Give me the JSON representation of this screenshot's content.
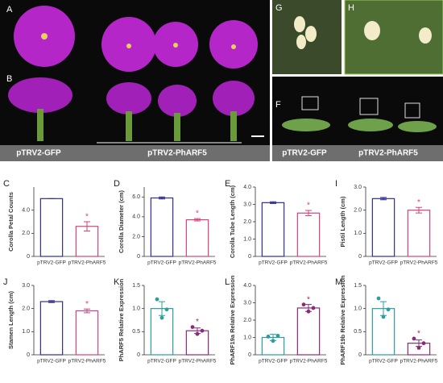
{
  "figure": {
    "photo_panels": {
      "A": "A",
      "B": "B",
      "G": "G",
      "H": "H",
      "F": "F"
    },
    "left_group_labels": [
      "pTRV2-GFP",
      "pTRV2-PhARF5"
    ],
    "right_group_labels": [
      "pTRV2-GFP",
      "pTRV2-PhARF5"
    ]
  },
  "chart_data": [
    {
      "type": "bar",
      "label": "C",
      "ylabel": "Corolla Petal Counts",
      "categories": [
        "pTRV2-GFP",
        "pTRV2-PhARF5"
      ],
      "values": [
        5,
        2.6
      ],
      "errors": [
        0,
        0.4
      ],
      "colors": [
        "#2e2e8f",
        "#d4427c"
      ],
      "ylim": [
        0,
        6
      ],
      "yticks": [
        0,
        {
          "value": 2,
          "label": "2.0"
        },
        {
          "value": 4,
          "label": "4.0"
        }
      ],
      "annotation": "*"
    },
    {
      "type": "bar",
      "label": "D",
      "ylabel": "Corolla Diameter (cm)",
      "categories": [
        "pTRV2-GFP",
        "pTRV2-PhARF5"
      ],
      "values": [
        5.9,
        3.7
      ],
      "errors": [
        0.1,
        0.12
      ],
      "colors": [
        "#2e2e8f",
        "#d4427c"
      ],
      "ylim": [
        0,
        7
      ],
      "yticks": [
        0,
        {
          "value": 2,
          "label": "2.0"
        },
        {
          "value": 4,
          "label": "4.0"
        },
        {
          "value": 6,
          "label": "6.0"
        }
      ],
      "annotation": "*"
    },
    {
      "type": "bar",
      "label": "E",
      "ylabel": "Corolla Tube Length (cm)",
      "categories": [
        "pTRV2-GFP",
        "pTRV2-PhARF5"
      ],
      "values": [
        3.1,
        2.5
      ],
      "errors": [
        0.05,
        0.15
      ],
      "colors": [
        "#2e2e8f",
        "#d4427c"
      ],
      "ylim": [
        0,
        4
      ],
      "yticks": [
        0,
        {
          "value": 1,
          "label": "1.0"
        },
        {
          "value": 2,
          "label": "2.0"
        },
        {
          "value": 3,
          "label": "3.0"
        },
        {
          "value": 4,
          "label": "4.0"
        }
      ],
      "annotation": "*"
    },
    {
      "type": "bar",
      "label": "I",
      "ylabel": "Pistil Length (cm)",
      "categories": [
        "pTRV2-GFP",
        "pTRV2-PhARF5"
      ],
      "values": [
        2.5,
        2.0
      ],
      "errors": [
        0.05,
        0.12
      ],
      "colors": [
        "#2e2e8f",
        "#d4427c"
      ],
      "ylim": [
        0,
        3
      ],
      "yticks": [
        0,
        {
          "value": 1,
          "label": "1.0"
        },
        {
          "value": 2,
          "label": "2.0"
        },
        {
          "value": 3,
          "label": "3.0"
        }
      ],
      "annotation": "*"
    },
    {
      "type": "bar",
      "label": "J",
      "ylabel": "Stamen Length (cm)",
      "categories": [
        "pTRV2-GFP",
        "pTRV2-PhARF5"
      ],
      "values": [
        2.3,
        1.9
      ],
      "errors": [
        0.04,
        0.08
      ],
      "colors": [
        "#2e2e8f",
        "#d4427c"
      ],
      "ylim": [
        0,
        3
      ],
      "yticks": [
        0,
        {
          "value": 1,
          "label": "1.0"
        },
        {
          "value": 2,
          "label": "2.0"
        },
        {
          "value": 3,
          "label": "3.0"
        }
      ],
      "annotation": "*"
    },
    {
      "type": "bar",
      "label": "K",
      "ylabel": "PhARF5 Relative Expression",
      "categories": [
        "pTRV2-GFP",
        "pTRV2-PhARF5"
      ],
      "values": [
        1.0,
        0.52
      ],
      "errors": [
        0.15,
        0.06
      ],
      "colors": [
        "#2a9d9d",
        "#8a2a78"
      ],
      "points": [
        [
          1.2,
          0.8,
          0.98
        ],
        [
          0.6,
          0.45,
          0.52
        ]
      ],
      "ylim": [
        0,
        1.5
      ],
      "yticks": [
        0,
        0.5,
        {
          "value": 1,
          "label": "1.0"
        },
        1.5
      ],
      "annotation": "*"
    },
    {
      "type": "bar",
      "label": "L",
      "ylabel": "PhARF19a Relative Expression",
      "categories": [
        "pTRV2-GFP",
        "pTRV2-PhARF5"
      ],
      "values": [
        1.0,
        2.7
      ],
      "errors": [
        0.18,
        0.2
      ],
      "colors": [
        "#2a9d9d",
        "#8a2a78"
      ],
      "points": [
        [
          1.05,
          0.8,
          1.1
        ],
        [
          2.9,
          2.5,
          2.7
        ]
      ],
      "ylim": [
        0,
        4
      ],
      "yticks": [
        0,
        {
          "value": 1,
          "label": "1.0"
        },
        {
          "value": 2,
          "label": "2.0"
        },
        {
          "value": 3,
          "label": "3.0"
        },
        {
          "value": 4,
          "label": "4.0"
        }
      ],
      "annotation": "*"
    },
    {
      "type": "bar",
      "label": "M",
      "ylabel": "PhARF19b Relative Expression",
      "categories": [
        "pTRV2-GFP",
        "pTRV2-PhARF5"
      ],
      "values": [
        1.0,
        0.25
      ],
      "errors": [
        0.15,
        0.07
      ],
      "colors": [
        "#2a9d9d",
        "#8a2a78"
      ],
      "points": [
        [
          1.22,
          0.82,
          0.98
        ],
        [
          0.35,
          0.15,
          0.25
        ]
      ],
      "ylim": [
        0,
        1.5
      ],
      "yticks": [
        0,
        0.5,
        {
          "value": 1,
          "label": "1.0"
        },
        1.5
      ],
      "annotation": "*"
    }
  ]
}
